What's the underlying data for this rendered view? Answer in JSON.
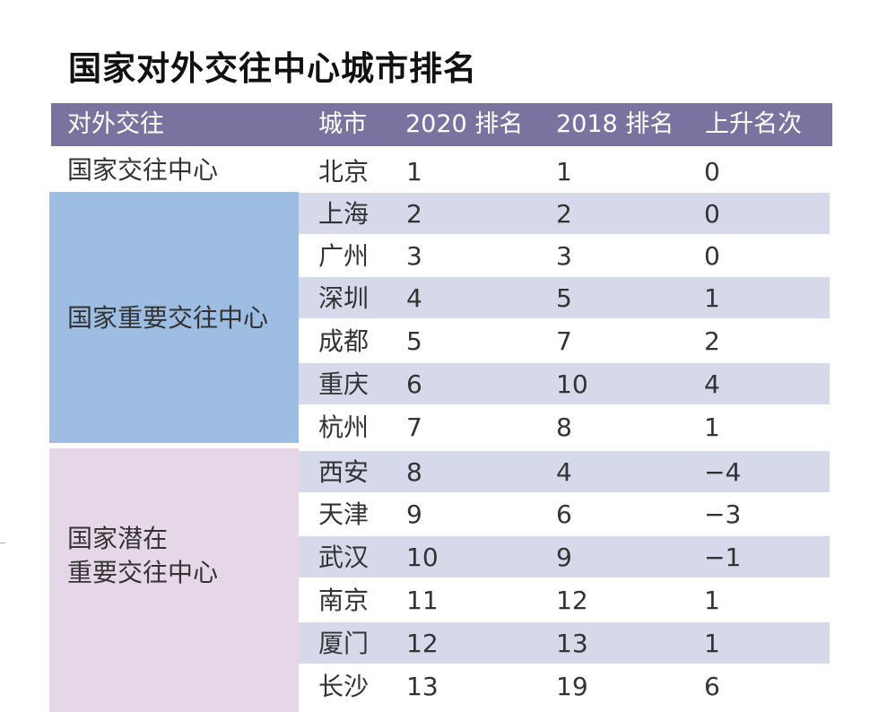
{
  "title": "国家对外交往中心城市排名",
  "header": {
    "col_category": "对外交往",
    "col_city": "城市",
    "col_2020": "2020 排名",
    "col_2018": "2018 排名",
    "col_change": "上升名次"
  },
  "colors": {
    "header_bg": "#7b739f",
    "row_shade": "#d6d9ea",
    "group_important": "#9dbde3",
    "group_potential": "#e6d7e8"
  },
  "groups": [
    {
      "label_lines": [
        "国家交往中心"
      ]
    },
    {
      "label_lines": [
        "国家重要交往中心"
      ]
    },
    {
      "label_lines": [
        "国家潜在",
        "重要交往中心"
      ]
    }
  ],
  "rows": [
    {
      "city": "北京",
      "rank2020": "1",
      "rank2018": "1",
      "change": "0"
    },
    {
      "city": "上海",
      "rank2020": "2",
      "rank2018": "2",
      "change": "0"
    },
    {
      "city": "广州",
      "rank2020": "3",
      "rank2018": "3",
      "change": "0"
    },
    {
      "city": "深圳",
      "rank2020": "4",
      "rank2018": "5",
      "change": "1"
    },
    {
      "city": "成都",
      "rank2020": "5",
      "rank2018": "7",
      "change": "2"
    },
    {
      "city": "重庆",
      "rank2020": "6",
      "rank2018": "10",
      "change": "4"
    },
    {
      "city": "杭州",
      "rank2020": "7",
      "rank2018": "8",
      "change": "1"
    },
    {
      "city": "西安",
      "rank2020": "8",
      "rank2018": "4",
      "change": "−4"
    },
    {
      "city": "天津",
      "rank2020": "9",
      "rank2018": "6",
      "change": "−3"
    },
    {
      "city": "武汉",
      "rank2020": "10",
      "rank2018": "9",
      "change": "−1"
    },
    {
      "city": "南京",
      "rank2020": "11",
      "rank2018": "12",
      "change": "1"
    },
    {
      "city": "厦门",
      "rank2020": "12",
      "rank2018": "13",
      "change": "1"
    },
    {
      "city": "长沙",
      "rank2020": "13",
      "rank2018": "19",
      "change": "6"
    }
  ]
}
